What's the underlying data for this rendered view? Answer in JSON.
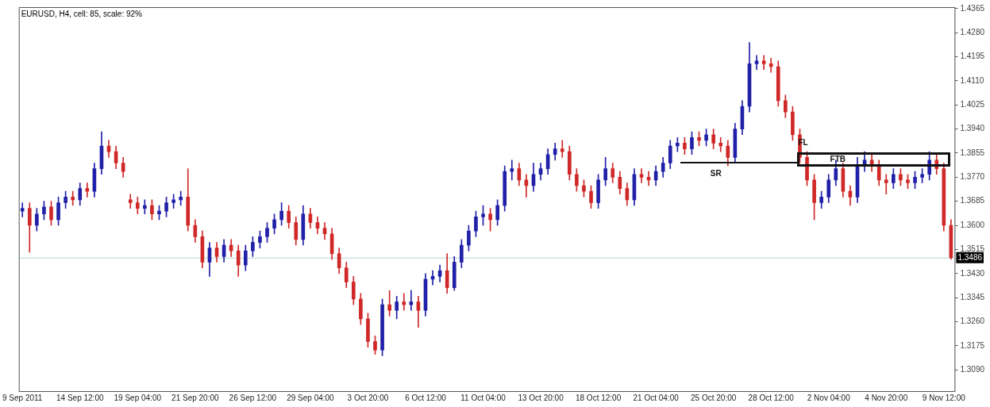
{
  "chart_data": {
    "type": "candlestick",
    "title": "EURUSD, H4, cell: 85, scale: 92%",
    "categories": [
      "9 Sep 2011",
      null,
      null,
      null,
      null,
      null,
      null,
      null,
      "14 Sep 12:00",
      null,
      null,
      null,
      null,
      null,
      null,
      null,
      "19 Sep 04:00",
      null,
      null,
      null,
      null,
      null,
      null,
      null,
      "21 Sep 20:00",
      null,
      null,
      null,
      null,
      null,
      null,
      null,
      "26 Sep 12:00",
      null,
      null,
      null,
      null,
      null,
      null,
      null,
      "29 Sep 04:00",
      null,
      null,
      null,
      null,
      null,
      null,
      null,
      "3 Oct 20:00",
      null,
      null,
      null,
      null,
      null,
      null,
      null,
      "6 Oct 12:00",
      null,
      null,
      null,
      null,
      null,
      null,
      null,
      "11 Oct 04:00",
      null,
      null,
      null,
      null,
      null,
      null,
      null,
      "13 Oct 20:00",
      null,
      null,
      null,
      null,
      null,
      null,
      null,
      "18 Oct 12:00",
      null,
      null,
      null,
      null,
      null,
      null,
      null,
      "21 Oct 04:00",
      null,
      null,
      null,
      null,
      null,
      null,
      null,
      "25 Oct 20:00",
      null,
      null,
      null,
      null,
      null,
      null,
      null,
      "28 Oct 12:00",
      null,
      null,
      null,
      null,
      null,
      null,
      null,
      "2 Nov 04:00",
      null,
      null,
      null,
      null,
      null,
      null,
      null,
      "4 Nov 20:00",
      null,
      null,
      null,
      null,
      null,
      null,
      null,
      "9 Nov 12:00",
      null
    ],
    "ohlc": [
      [
        1.365,
        1.368,
        1.363,
        1.366
      ],
      [
        1.366,
        1.368,
        1.3505,
        1.36
      ],
      [
        1.36,
        1.366,
        1.358,
        1.364
      ],
      [
        1.364,
        1.3685,
        1.362,
        1.3665
      ],
      [
        1.3665,
        1.3685,
        1.36,
        1.362
      ],
      [
        1.362,
        1.37,
        1.36,
        1.368
      ],
      [
        1.368,
        1.372,
        1.366,
        1.37
      ],
      [
        1.37,
        1.372,
        1.367,
        1.369
      ],
      [
        1.369,
        1.375,
        1.367,
        1.373
      ],
      [
        1.373,
        1.375,
        1.37,
        1.372
      ],
      [
        1.372,
        1.382,
        1.37,
        1.38
      ],
      [
        1.38,
        1.393,
        1.378,
        1.388
      ],
      [
        1.388,
        1.39,
        1.384,
        1.386
      ],
      [
        1.386,
        1.388,
        1.38,
        1.382
      ],
      [
        1.382,
        1.384,
        1.377,
        1.379
      ],
      [
        1.369,
        1.371,
        1.366,
        1.368
      ],
      [
        1.368,
        1.37,
        1.364,
        1.366
      ],
      [
        1.366,
        1.369,
        1.364,
        1.367
      ],
      [
        1.367,
        1.369,
        1.362,
        1.364
      ],
      [
        1.364,
        1.367,
        1.362,
        1.365
      ],
      [
        1.365,
        1.37,
        1.363,
        1.368
      ],
      [
        1.368,
        1.371,
        1.366,
        1.369
      ],
      [
        1.369,
        1.372,
        1.367,
        1.37
      ],
      [
        1.37,
        1.38,
        1.358,
        1.36
      ],
      [
        1.36,
        1.362,
        1.354,
        1.356
      ],
      [
        1.356,
        1.358,
        1.345,
        1.347
      ],
      [
        1.347,
        1.354,
        1.342,
        1.352
      ],
      [
        1.352,
        1.354,
        1.347,
        1.349
      ],
      [
        1.349,
        1.355,
        1.347,
        1.353
      ],
      [
        1.353,
        1.355,
        1.349,
        1.351
      ],
      [
        1.351,
        1.353,
        1.342,
        1.346
      ],
      [
        1.346,
        1.353,
        1.344,
        1.351
      ],
      [
        1.351,
        1.356,
        1.349,
        1.354
      ],
      [
        1.354,
        1.358,
        1.352,
        1.356
      ],
      [
        1.356,
        1.361,
        1.354,
        1.359
      ],
      [
        1.359,
        1.364,
        1.357,
        1.362
      ],
      [
        1.362,
        1.368,
        1.36,
        1.365
      ],
      [
        1.365,
        1.367,
        1.359,
        1.361
      ],
      [
        1.361,
        1.363,
        1.353,
        1.355
      ],
      [
        1.355,
        1.367,
        1.353,
        1.364
      ],
      [
        1.364,
        1.366,
        1.359,
        1.361
      ],
      [
        1.361,
        1.363,
        1.357,
        1.359
      ],
      [
        1.359,
        1.361,
        1.355,
        1.357
      ],
      [
        1.357,
        1.359,
        1.348,
        1.35
      ],
      [
        1.35,
        1.352,
        1.343,
        1.345
      ],
      [
        1.345,
        1.347,
        1.338,
        1.34
      ],
      [
        1.34,
        1.342,
        1.332,
        1.334
      ],
      [
        1.334,
        1.336,
        1.325,
        1.327
      ],
      [
        1.327,
        1.329,
        1.317,
        1.319
      ],
      [
        1.319,
        1.321,
        1.3145,
        1.316
      ],
      [
        1.316,
        1.334,
        1.314,
        1.332
      ],
      [
        1.332,
        1.337,
        1.328,
        1.33
      ],
      [
        1.33,
        1.335,
        1.327,
        1.333
      ],
      [
        1.333,
        1.336,
        1.33,
        1.332
      ],
      [
        1.332,
        1.337,
        1.33,
        1.333
      ],
      [
        1.333,
        1.335,
        1.324,
        1.33
      ],
      [
        1.33,
        1.343,
        1.328,
        1.341
      ],
      [
        1.341,
        1.344,
        1.339,
        1.342
      ],
      [
        1.342,
        1.346,
        1.34,
        1.344
      ],
      [
        1.344,
        1.35,
        1.336,
        1.338
      ],
      [
        1.338,
        1.349,
        1.337,
        1.347
      ],
      [
        1.347,
        1.355,
        1.345,
        1.353
      ],
      [
        1.353,
        1.36,
        1.351,
        1.358
      ],
      [
        1.358,
        1.365,
        1.356,
        1.363
      ],
      [
        1.363,
        1.367,
        1.36,
        1.364
      ],
      [
        1.364,
        1.366,
        1.358,
        1.362
      ],
      [
        1.362,
        1.369,
        1.36,
        1.367
      ],
      [
        1.367,
        1.381,
        1.365,
        1.379
      ],
      [
        1.379,
        1.383,
        1.376,
        1.38
      ],
      [
        1.38,
        1.382,
        1.374,
        1.376
      ],
      [
        1.376,
        1.378,
        1.37,
        1.374
      ],
      [
        1.374,
        1.382,
        1.372,
        1.378
      ],
      [
        1.378,
        1.382,
        1.376,
        1.38
      ],
      [
        1.38,
        1.387,
        1.378,
        1.385
      ],
      [
        1.385,
        1.389,
        1.383,
        1.387
      ],
      [
        1.387,
        1.39,
        1.384,
        1.386
      ],
      [
        1.386,
        1.388,
        1.376,
        1.378
      ],
      [
        1.378,
        1.38,
        1.372,
        1.374
      ],
      [
        1.374,
        1.376,
        1.37,
        1.372
      ],
      [
        1.372,
        1.374,
        1.366,
        1.368
      ],
      [
        1.368,
        1.378,
        1.366,
        1.376
      ],
      [
        1.376,
        1.384,
        1.374,
        1.38
      ],
      [
        1.38,
        1.382,
        1.375,
        1.377
      ],
      [
        1.377,
        1.379,
        1.371,
        1.373
      ],
      [
        1.373,
        1.375,
        1.367,
        1.369
      ],
      [
        1.369,
        1.38,
        1.367,
        1.378
      ],
      [
        1.378,
        1.38,
        1.375,
        1.377
      ],
      [
        1.377,
        1.379,
        1.374,
        1.376
      ],
      [
        1.376,
        1.381,
        1.374,
        1.379
      ],
      [
        1.379,
        1.384,
        1.377,
        1.382
      ],
      [
        1.382,
        1.39,
        1.38,
        1.388
      ],
      [
        1.388,
        1.391,
        1.386,
        1.389
      ],
      [
        1.389,
        1.391,
        1.385,
        1.387
      ],
      [
        1.387,
        1.393,
        1.385,
        1.391
      ],
      [
        1.391,
        1.393,
        1.388,
        1.39
      ],
      [
        1.39,
        1.394,
        1.388,
        1.392
      ],
      [
        1.392,
        1.394,
        1.387,
        1.389
      ],
      [
        1.389,
        1.391,
        1.386,
        1.388
      ],
      [
        1.388,
        1.39,
        1.381,
        1.384
      ],
      [
        1.384,
        1.396,
        1.382,
        1.394
      ],
      [
        1.394,
        1.404,
        1.392,
        1.402
      ],
      [
        1.402,
        1.4245,
        1.4,
        1.417
      ],
      [
        1.417,
        1.42,
        1.415,
        1.418
      ],
      [
        1.418,
        1.42,
        1.415,
        1.417
      ],
      [
        1.417,
        1.419,
        1.414,
        1.416
      ],
      [
        1.416,
        1.418,
        1.402,
        1.404
      ],
      [
        1.404,
        1.406,
        1.398,
        1.4
      ],
      [
        1.4,
        1.402,
        1.39,
        1.392
      ],
      [
        1.392,
        1.394,
        1.382,
        1.384
      ],
      [
        1.384,
        1.386,
        1.374,
        1.376
      ],
      [
        1.376,
        1.378,
        1.362,
        1.368
      ],
      [
        1.368,
        1.372,
        1.366,
        1.37
      ],
      [
        1.37,
        1.378,
        1.368,
        1.376
      ],
      [
        1.376,
        1.383,
        1.374,
        1.38
      ],
      [
        1.38,
        1.382,
        1.37,
        1.372
      ],
      [
        1.372,
        1.374,
        1.367,
        1.37
      ],
      [
        1.37,
        1.384,
        1.368,
        1.381
      ],
      [
        1.381,
        1.386,
        1.379,
        1.383
      ],
      [
        1.383,
        1.385,
        1.379,
        1.381
      ],
      [
        1.381,
        1.383,
        1.374,
        1.376
      ],
      [
        1.376,
        1.378,
        1.371,
        1.375
      ],
      [
        1.375,
        1.38,
        1.373,
        1.378
      ],
      [
        1.378,
        1.38,
        1.374,
        1.376
      ],
      [
        1.376,
        1.378,
        1.373,
        1.375
      ],
      [
        1.375,
        1.379,
        1.373,
        1.377
      ],
      [
        1.377,
        1.38,
        1.375,
        1.378
      ],
      [
        1.378,
        1.386,
        1.376,
        1.383
      ],
      [
        1.383,
        1.385,
        1.378,
        1.38
      ],
      [
        1.38,
        1.382,
        1.358,
        1.36
      ],
      [
        1.36,
        1.362,
        1.348,
        1.3486
      ]
    ],
    "colors": [
      "#2020a8",
      "#d02828",
      "#2020a8",
      "#2020a8",
      "#d02828",
      "#2020a8",
      "#2020a8",
      "#d02828",
      "#2020a8",
      "#d02828",
      "#2020a8",
      "#2020a8",
      "#d02828",
      "#d02828",
      "#d02828",
      "#d02828",
      "#d02828",
      "#2020a8",
      "#d02828",
      "#2020a8",
      "#2020a8",
      "#2020a8",
      "#2020a8",
      "#d02828",
      "#d02828",
      "#d02828",
      "#2020a8",
      "#d02828",
      "#2020a8",
      "#d02828",
      "#d02828",
      "#2020a8",
      "#2020a8",
      "#2020a8",
      "#2020a8",
      "#2020a8",
      "#2020a8",
      "#d02828",
      "#d02828",
      "#2020a8",
      "#d02828",
      "#d02828",
      "#d02828",
      "#d02828",
      "#d02828",
      "#d02828",
      "#d02828",
      "#d02828",
      "#d02828",
      "#d02828",
      "#2020a8",
      "#d02828",
      "#2020a8",
      "#d02828",
      "#2020a8",
      "#d02828",
      "#2020a8",
      "#2020a8",
      "#2020a8",
      "#d02828",
      "#2020a8",
      "#2020a8",
      "#2020a8",
      "#2020a8",
      "#2020a8",
      "#d02828",
      "#2020a8",
      "#2020a8",
      "#2020a8",
      "#d02828",
      "#d02828",
      "#2020a8",
      "#2020a8",
      "#2020a8",
      "#2020a8",
      "#d02828",
      "#d02828",
      "#d02828",
      "#d02828",
      "#d02828",
      "#2020a8",
      "#2020a8",
      "#d02828",
      "#d02828",
      "#d02828",
      "#2020a8",
      "#d02828",
      "#d02828",
      "#2020a8",
      "#2020a8",
      "#2020a8",
      "#2020a8",
      "#d02828",
      "#2020a8",
      "#d02828",
      "#2020a8",
      "#d02828",
      "#d02828",
      "#d02828",
      "#2020a8",
      "#2020a8",
      "#2020a8",
      "#2020a8",
      "#d02828",
      "#d02828",
      "#d02828",
      "#d02828",
      "#d02828",
      "#d02828",
      "#d02828",
      "#d02828",
      "#2020a8",
      "#2020a8",
      "#2020a8",
      "#d02828",
      "#d02828",
      "#2020a8",
      "#2020a8",
      "#d02828",
      "#d02828",
      "#d02828",
      "#2020a8",
      "#d02828",
      "#d02828",
      "#2020a8",
      "#2020a8",
      "#2020a8",
      "#d02828",
      "#d02828",
      "#d02828"
    ],
    "ylim": [
      1.3015,
      1.437
    ],
    "yticks": [
      {
        "value": 1.309,
        "label": "1.3090"
      },
      1.3175,
      {
        "value": 1.326,
        "label": "1.3260"
      },
      1.3345,
      {
        "value": 1.343,
        "label": "1.3430"
      },
      1.3515,
      {
        "value": 1.36,
        "label": "1.3600"
      },
      1.3685,
      {
        "value": 1.377,
        "label": "1.3770"
      },
      1.3855,
      {
        "value": 1.394,
        "label": "1.3940"
      },
      1.4025,
      {
        "value": 1.411,
        "label": "1.4110"
      },
      1.4195,
      {
        "value": 1.428,
        "label": "1.4280"
      },
      1.4365
    ],
    "ref_lines": [
      {
        "axis": "y",
        "value": 1.3486,
        "label": "1.3486",
        "color": "#b8d4d4"
      }
    ],
    "annotations": [
      "SR",
      "FL",
      "FTB"
    ],
    "grid": false,
    "legend": false
  }
}
